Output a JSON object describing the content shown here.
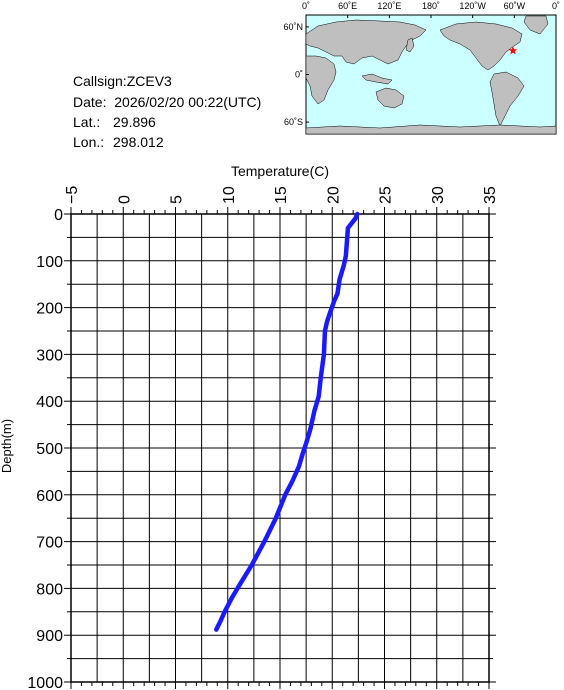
{
  "info": {
    "callsign": "Callsign:ZCEV3",
    "date": "Date:  2026/02/20 00:22(UTC)",
    "lat_label": "Lat.:",
    "lat_value": "29.896",
    "lon_label": "Lon.:",
    "lon_value": "298.012"
  },
  "map": {
    "top_labels": [
      "0˚",
      "60˚E",
      "120˚E",
      "180˚",
      "120˚W",
      "60˚W",
      "0˚"
    ],
    "side_labels": [
      "60˚N",
      "0˚",
      "60˚S"
    ],
    "ocean_color": "#ccffff",
    "land_color": "#bfbfbf",
    "marker": "star",
    "marker_color": "#ff0000",
    "marker_lat": 29.896,
    "marker_lon": 298.012
  },
  "chart_data": {
    "type": "line",
    "xlabel": "Temperature(C)",
    "ylabel": "Depth(m)",
    "xlim": [
      -5,
      35
    ],
    "ylim": [
      0,
      1000
    ],
    "x_inverted": false,
    "y_inverted": true,
    "x_ticks": [
      "−5",
      "0",
      "5",
      "10",
      "15",
      "20",
      "25",
      "30",
      "35"
    ],
    "y_ticks": [
      "0",
      "100",
      "200",
      "300",
      "400",
      "500",
      "600",
      "700",
      "800",
      "900",
      "1000"
    ],
    "grid": true,
    "line_color": "#1a1aff",
    "series": [
      {
        "temperature": [
          22.4,
          22.2,
          21.5,
          21.4,
          21.3,
          21.1,
          20.7,
          20.5,
          20.2,
          19.8,
          19.5,
          19.3,
          19.2,
          18.9,
          18.7,
          18.3,
          17.9,
          17.5,
          17.2,
          16.8,
          16.2,
          15.5,
          14.6,
          13.5,
          12.3,
          11.2,
          10.4,
          9.7,
          9.3,
          8.9
        ],
        "depth": [
          0,
          10,
          30,
          60,
          90,
          110,
          140,
          170,
          185,
          210,
          230,
          250,
          300,
          350,
          390,
          420,
          460,
          490,
          510,
          540,
          570,
          600,
          650,
          700,
          750,
          790,
          820,
          850,
          870,
          888
        ]
      }
    ]
  }
}
